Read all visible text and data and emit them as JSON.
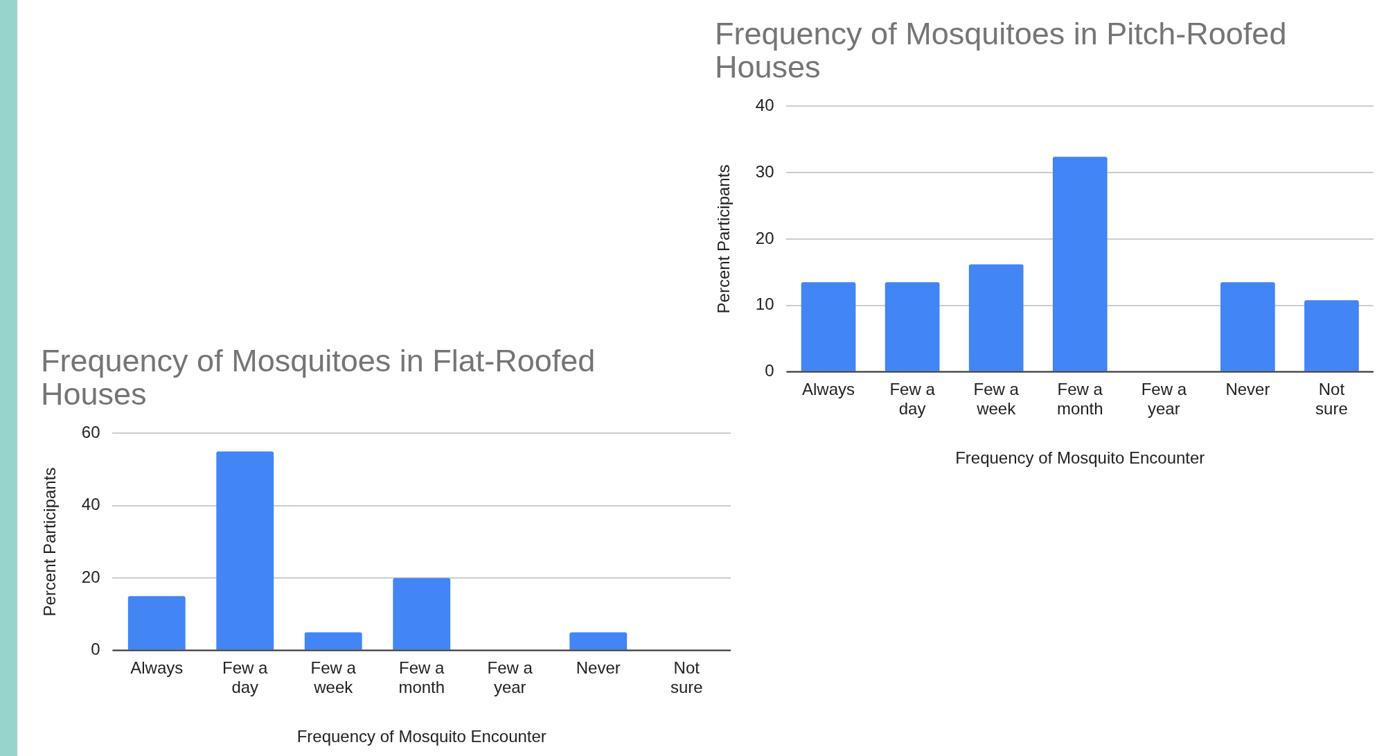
{
  "chart_data": [
    {
      "type": "bar",
      "title": "Frequency of Mosquitoes in Flat-Roofed Houses",
      "xlabel": "Frequency of Mosquito Encounter",
      "ylabel": "Percent Participants",
      "categories": [
        "Always",
        "Few a day",
        "Few a week",
        "Few a month",
        "Few a year",
        "Never",
        "Not sure"
      ],
      "values": [
        15,
        55,
        5,
        20,
        0,
        5,
        0
      ],
      "color": "#4285f4",
      "ylim": [
        0,
        60
      ],
      "yticks": [
        0,
        20,
        40,
        60
      ],
      "grid": "y"
    },
    {
      "type": "bar",
      "title": "Frequency of Mosquitoes in Pitch-Roofed Houses",
      "xlabel": "Frequency of Mosquito Encounter",
      "ylabel": "Percent Participants",
      "categories": [
        "Always",
        "Few a day",
        "Few a week",
        "Few a month",
        "Few a year",
        "Never",
        "Not sure"
      ],
      "values": [
        13.5,
        13.5,
        16.2,
        32.4,
        0,
        13.5,
        10.8
      ],
      "color": "#4285f4",
      "ylim": [
        0,
        40
      ],
      "yticks": [
        0,
        10,
        20,
        30,
        40
      ],
      "grid": "y"
    }
  ]
}
